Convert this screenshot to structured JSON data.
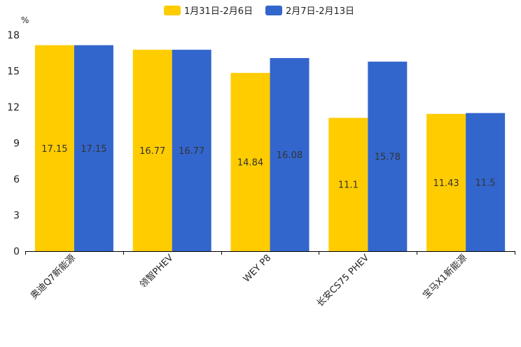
{
  "chart_data": {
    "type": "bar",
    "unit": "%",
    "categories": [
      "奥迪Q7新能源",
      "领智PHEV",
      "WEY P8",
      "长安CS75 PHEV",
      "宝马X1新能源"
    ],
    "series": [
      {
        "name": "1月31日-2月6日",
        "color": "#FFCC00",
        "values": [
          17.15,
          16.77,
          14.84,
          11.1,
          11.43
        ],
        "labels": [
          "17.15",
          "16.77",
          "14.84",
          "11.1",
          "11.43"
        ]
      },
      {
        "name": "2月7日-2月13日",
        "color": "#3366CC",
        "values": [
          17.15,
          16.77,
          16.08,
          15.78,
          11.5
        ],
        "labels": [
          "17.15",
          "16.77",
          "16.08",
          "15.78",
          "11.5"
        ]
      }
    ],
    "ylim": [
      0,
      18
    ],
    "yticks": [
      0,
      3,
      6,
      9,
      12,
      15,
      18
    ],
    "ytick_labels": [
      "0",
      "3",
      "6",
      "9",
      "12",
      "15",
      "18"
    ],
    "legend_position": "top-center",
    "grid": false
  }
}
